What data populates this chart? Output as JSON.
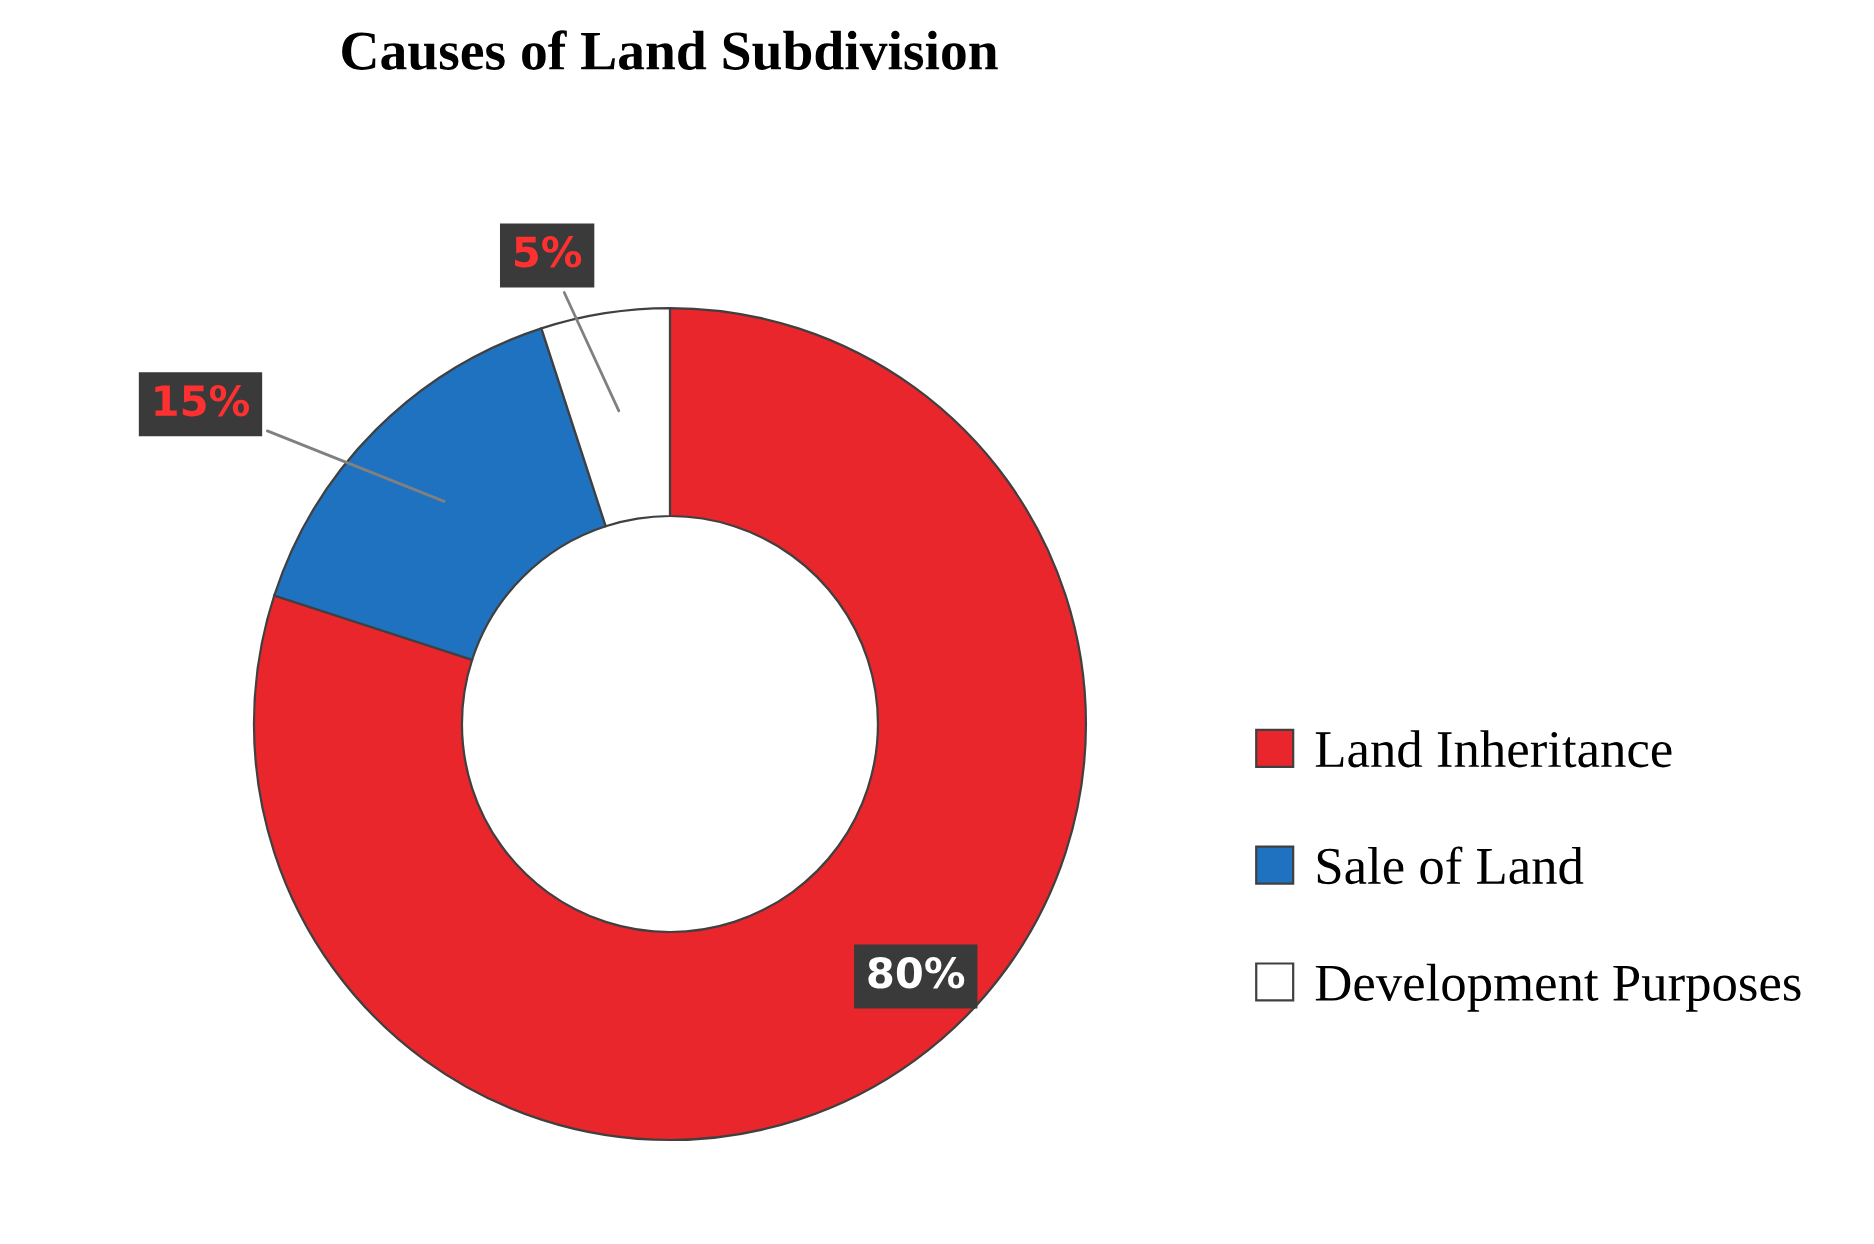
{
  "chart_data": {
    "type": "donut",
    "title": "Causes of Land Subdivision",
    "categories": [
      "Land Inheritance",
      "Sale of Land",
      "Development Purposes"
    ],
    "values": [
      80,
      15,
      5
    ],
    "colors": [
      "#e8262b",
      "#1f72c0",
      "#ffffff"
    ],
    "value_labels": [
      "80%",
      "15%",
      "5%"
    ],
    "legend": "right"
  }
}
